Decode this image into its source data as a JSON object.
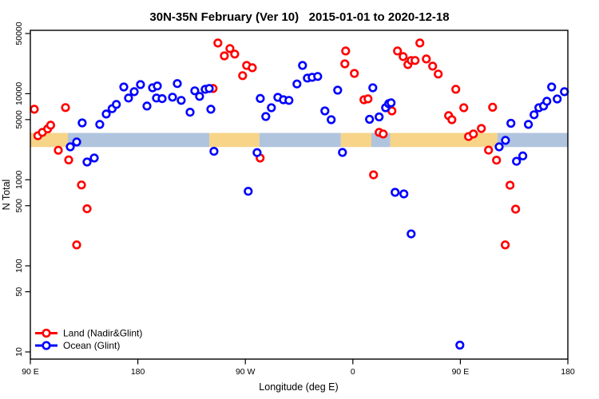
{
  "title": "30N-35N February (Ver 10)   2015-01-01 to 2020-12-18",
  "chart_data": {
    "type": "scatter",
    "title": "30N-35N February (Ver 10)   2015-01-01 to 2020-12-18",
    "xlabel": "Longitude (deg E)",
    "ylabel": "N Total",
    "x_axis": {
      "range": [
        90,
        540
      ],
      "ticks": [
        90,
        180,
        270,
        360,
        450,
        540
      ],
      "tick_labels": [
        "90 E",
        "180",
        "90 W",
        "0",
        "90 E",
        "180"
      ],
      "note": "longitude wraps eastward: 90E to 180 to 90W to 0 to 90E to 180"
    },
    "y_axis": {
      "scale": "log",
      "range": [
        8.3,
        54500
      ],
      "ticks": [
        10,
        50,
        100,
        500,
        1000,
        5000,
        10000,
        50000
      ],
      "tick_labels": [
        "10",
        "50",
        "100",
        "500",
        "1000",
        "5000",
        "10000",
        "50000"
      ]
    },
    "grid": false,
    "legend": {
      "position": "bottom-left",
      "items": [
        {
          "label": "Land (Nadir&Glint)",
          "color": "#ff0000"
        },
        {
          "label": "Ocean (Glint)",
          "color": "#0000ff"
        }
      ]
    },
    "map_band": {
      "description": "land/ocean strip drawn across plot",
      "top_value": 3500,
      "bottom_value": 2400,
      "colors": {
        "land": "#f7d488",
        "ocean": "#b0c4de"
      },
      "segments": [
        {
          "from": 90,
          "to": 121.4,
          "surface": "land"
        },
        {
          "from": 121.4,
          "to": 239.8,
          "surface": "ocean"
        },
        {
          "from": 239.8,
          "to": 281.8,
          "surface": "land"
        },
        {
          "from": 281.8,
          "to": 350.0,
          "surface": "ocean"
        },
        {
          "from": 350.0,
          "to": 375.5,
          "surface": "land"
        },
        {
          "from": 375.5,
          "to": 391.3,
          "surface": "ocean"
        },
        {
          "from": 391.3,
          "to": 481.0,
          "surface": "land"
        },
        {
          "from": 481.0,
          "to": 540.0,
          "surface": "ocean"
        }
      ]
    },
    "series": [
      {
        "name": "Land (Nadir&Glint)",
        "color": "#ff0000",
        "marker": "open-circle",
        "points": [
          [
            93.3,
            6600
          ],
          [
            119.4,
            6900
          ],
          [
            96.3,
            3250
          ],
          [
            100.0,
            3550
          ],
          [
            104.5,
            3900
          ],
          [
            107.0,
            4300
          ],
          [
            113.4,
            2200
          ],
          [
            122.1,
            1700
          ],
          [
            132.8,
            870
          ],
          [
            137.5,
            460
          ],
          [
            128.8,
            175
          ],
          [
            243.0,
            11500
          ],
          [
            247.0,
            38800
          ],
          [
            252.4,
            27500
          ],
          [
            257.1,
            33400
          ],
          [
            261.1,
            28800
          ],
          [
            267.7,
            16200
          ],
          [
            271.1,
            21300
          ],
          [
            275.8,
            20000
          ],
          [
            282.4,
            1790
          ],
          [
            353.3,
            22200
          ],
          [
            354.0,
            31300
          ],
          [
            361.3,
            17200
          ],
          [
            369.3,
            8500
          ],
          [
            372.7,
            8700
          ],
          [
            377.3,
            1140
          ],
          [
            382.0,
            3550
          ],
          [
            385.4,
            3400
          ],
          [
            392.7,
            6310
          ],
          [
            397.4,
            31300
          ],
          [
            402.1,
            27000
          ],
          [
            406.1,
            21800
          ],
          [
            408.8,
            24300
          ],
          [
            412.1,
            24300
          ],
          [
            416.1,
            38800
          ],
          [
            421.5,
            25300
          ],
          [
            426.8,
            20900
          ],
          [
            431.5,
            16900
          ],
          [
            440.2,
            5560
          ],
          [
            442.9,
            4990
          ],
          [
            446.2,
            11250
          ],
          [
            452.9,
            6870
          ],
          [
            477.0,
            6950
          ],
          [
            456.9,
            3180
          ],
          [
            460.9,
            3400
          ],
          [
            467.6,
            3940
          ],
          [
            473.6,
            2210
          ],
          [
            480.3,
            1690
          ],
          [
            491.6,
            865
          ],
          [
            496.3,
            456
          ],
          [
            487.6,
            175
          ]
        ]
      },
      {
        "name": "Ocean (Glint)",
        "color": "#0000ff",
        "marker": "open-circle",
        "points": [
          [
            123.4,
            2415
          ],
          [
            128.8,
            2750
          ],
          [
            137.5,
            1610
          ],
          [
            143.5,
            1790
          ],
          [
            133.4,
            4580
          ],
          [
            148.1,
            4400
          ],
          [
            153.5,
            5800
          ],
          [
            158.5,
            6700
          ],
          [
            162.0,
            7500
          ],
          [
            168.2,
            11970
          ],
          [
            172.2,
            8890
          ],
          [
            176.9,
            10540
          ],
          [
            182.2,
            12760
          ],
          [
            187.6,
            7180
          ],
          [
            192.3,
            11700
          ],
          [
            196.3,
            12300
          ],
          [
            195.6,
            8890
          ],
          [
            200.3,
            8760
          ],
          [
            209.0,
            9100
          ],
          [
            213.0,
            13100
          ],
          [
            216.3,
            8350
          ],
          [
            223.7,
            6100
          ],
          [
            227.7,
            10800
          ],
          [
            231.7,
            9300
          ],
          [
            236.4,
            11250
          ],
          [
            239.8,
            11500
          ],
          [
            241.1,
            6600
          ],
          [
            243.7,
            2140
          ],
          [
            272.4,
            735
          ],
          [
            279.8,
            2070
          ],
          [
            282.5,
            8800
          ],
          [
            287.1,
            5430
          ],
          [
            291.8,
            6870
          ],
          [
            297.2,
            9070
          ],
          [
            301.8,
            8510
          ],
          [
            306.5,
            8350
          ],
          [
            313.2,
            12980
          ],
          [
            317.9,
            21300
          ],
          [
            321.9,
            15170
          ],
          [
            325.9,
            15500
          ],
          [
            330.6,
            15850
          ],
          [
            336.6,
            6310
          ],
          [
            341.9,
            4990
          ],
          [
            347.3,
            10990
          ],
          [
            351.3,
            2080
          ],
          [
            374.0,
            5040
          ],
          [
            376.7,
            11700
          ],
          [
            382.0,
            5370
          ],
          [
            387.4,
            6870
          ],
          [
            390.0,
            7650
          ],
          [
            392.0,
            7830
          ],
          [
            395.4,
            715
          ],
          [
            402.7,
            685
          ],
          [
            408.8,
            235
          ],
          [
            449.6,
            12
          ],
          [
            482.5,
            2415
          ],
          [
            487.8,
            2870
          ],
          [
            492.3,
            4530
          ],
          [
            497.0,
            1640
          ],
          [
            502.3,
            1890
          ],
          [
            507.0,
            4400
          ],
          [
            511.7,
            5690
          ],
          [
            515.7,
            6870
          ],
          [
            519.7,
            7180
          ],
          [
            522.4,
            8170
          ],
          [
            526.4,
            11970
          ],
          [
            531.1,
            8690
          ],
          [
            537.1,
            10540
          ]
        ]
      }
    ]
  }
}
